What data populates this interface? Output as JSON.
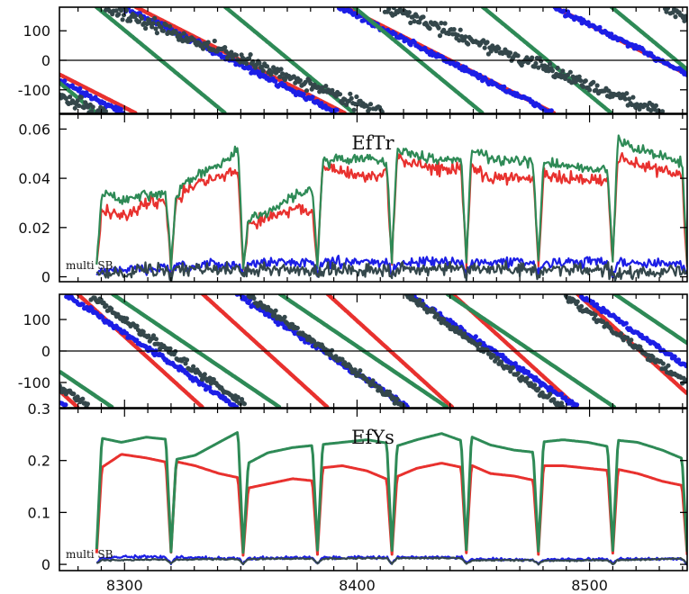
{
  "chart_data": [
    {
      "type": "scatter",
      "panel": "phase-top",
      "x_range": [
        8272,
        8542
      ],
      "ylim": [
        -180,
        180
      ],
      "y_ticks": [
        100,
        0,
        -100
      ],
      "y_tick_labels": [
        "100",
        "0",
        "-100"
      ],
      "series": [
        {
          "color": "#e8312e",
          "wraps": [
            {
              "start": 8305,
              "rate": -4.0
            }
          ]
        },
        {
          "color": "#1c1ee6",
          "wraps": [
            {
              "start": 8300,
              "rate": -3.9,
              "scatter": 14
            }
          ]
        },
        {
          "color": "#2e8a56",
          "wraps": [
            {
              "start": 8288,
              "rate": -6.5
            }
          ]
        },
        {
          "color": "#34474b",
          "wraps": [
            {
              "start": 8292,
              "rate": -3.0,
              "scatter": 30
            }
          ]
        }
      ]
    },
    {
      "type": "line",
      "panel": "amp-top",
      "title": "EfTr",
      "annotation": "multi SB",
      "x_range": [
        8272,
        8542
      ],
      "ylim": [
        -0.002,
        0.066
      ],
      "y_ticks": [
        0,
        0.02,
        0.04,
        0.06
      ],
      "y_tick_labels": [
        "0",
        "0.02",
        "0.04",
        "0.06"
      ],
      "cycle_breaks": [
        8288,
        8320,
        8351,
        8383,
        8415,
        8447,
        8478,
        8510,
        8542
      ],
      "series": [
        {
          "color": "#e8312e",
          "band": 0.004,
          "segments": [
            [
              0.028,
              0.024,
              0.03,
              0.032
            ],
            [
              0.03,
              0.038,
              0.04,
              0.044
            ],
            [
              0.021,
              0.024,
              0.028,
              0.026
            ],
            [
              0.046,
              0.042,
              0.041,
              0.042
            ],
            [
              0.048,
              0.046,
              0.044,
              0.043
            ],
            [
              0.046,
              0.04,
              0.041,
              0.041
            ],
            [
              0.042,
              0.039,
              0.04,
              0.039
            ],
            [
              0.05,
              0.046,
              0.043,
              0.04
            ]
          ]
        },
        {
          "color": "#2e8a56",
          "band": 0.003,
          "segments": [
            [
              0.035,
              0.031,
              0.033,
              0.034
            ],
            [
              0.032,
              0.041,
              0.045,
              0.054
            ],
            [
              0.022,
              0.026,
              0.033,
              0.036
            ],
            [
              0.046,
              0.048,
              0.048,
              0.047
            ],
            [
              0.052,
              0.049,
              0.048,
              0.048
            ],
            [
              0.053,
              0.048,
              0.047,
              0.046
            ],
            [
              0.047,
              0.045,
              0.044,
              0.043
            ],
            [
              0.057,
              0.052,
              0.049,
              0.046
            ]
          ]
        },
        {
          "color": "#1c1ee6",
          "band": 0.003,
          "segments": [
            [
              0.002,
              0.003,
              0.003,
              0.004
            ],
            [
              0.004,
              0.004,
              0.005,
              0.005
            ],
            [
              0.005,
              0.006,
              0.006,
              0.006
            ],
            [
              0.006,
              0.006,
              0.006,
              0.006
            ],
            [
              0.006,
              0.006,
              0.006,
              0.006
            ],
            [
              0.006,
              0.006,
              0.006,
              0.006
            ],
            [
              0.006,
              0.006,
              0.006,
              0.006
            ],
            [
              0.006,
              0.006,
              0.005,
              0.005
            ]
          ]
        },
        {
          "color": "#34474b",
          "band": 0.004,
          "segments": [
            [
              0.002,
              0.002,
              0.003,
              0.003
            ],
            [
              0.003,
              0.003,
              0.003,
              0.003
            ],
            [
              0.003,
              0.003,
              0.003,
              0.003
            ],
            [
              0.003,
              0.003,
              0.003,
              0.003
            ],
            [
              0.003,
              0.003,
              0.003,
              0.003
            ],
            [
              0.003,
              0.003,
              0.003,
              0.003
            ],
            [
              0.003,
              0.003,
              0.003,
              0.003
            ],
            [
              0.002,
              0.002,
              0.002,
              0.002
            ]
          ]
        }
      ]
    },
    {
      "type": "scatter",
      "panel": "phase-bottom",
      "x_range": [
        8272,
        8542
      ],
      "ylim": [
        -180,
        180
      ],
      "y_ticks": [
        100,
        0,
        -100
      ],
      "y_tick_labels": [
        "100",
        "0",
        "-100"
      ],
      "series": [
        {
          "color": "#e8312e",
          "wraps": [
            {
              "start": 8280,
              "rate": -6.7
            }
          ]
        },
        {
          "color": "#1c1ee6",
          "wraps": [
            {
              "start": 8275,
              "rate": -4.9,
              "scatter": 12
            }
          ]
        },
        {
          "color": "#2e8a56",
          "wraps": [
            {
              "start": 8295,
              "rate": -5.0
            }
          ]
        },
        {
          "color": "#34474b",
          "wraps": [
            {
              "start": 8285,
              "rate": -5.3,
              "scatter": 18
            }
          ]
        }
      ]
    },
    {
      "type": "line",
      "panel": "amp-bottom",
      "title": "EfYs",
      "annotation": "multi SB",
      "x_range": [
        8272,
        8542
      ],
      "ylim": [
        -0.012,
        0.3
      ],
      "y_ticks": [
        0,
        0.1,
        0.2,
        0.3
      ],
      "y_tick_labels": [
        "0",
        "0.1",
        "0.2",
        "0.3"
      ],
      "x_ticks": [
        8300,
        8400,
        8500
      ],
      "x_tick_labels": [
        "8300",
        "8400",
        "8500"
      ],
      "cycle_breaks": [
        8288,
        8320,
        8351,
        8383,
        8415,
        8447,
        8478,
        8510,
        8542
      ],
      "series": [
        {
          "color": "#e8312e",
          "band": 0,
          "segments": [
            [
              0.18,
              0.212,
              0.205,
              0.195
            ],
            [
              0.2,
              0.19,
              0.175,
              0.165
            ],
            [
              0.145,
              0.155,
              0.165,
              0.16
            ],
            [
              0.185,
              0.19,
              0.18,
              0.16
            ],
            [
              0.165,
              0.185,
              0.195,
              0.185
            ],
            [
              0.195,
              0.175,
              0.17,
              0.16
            ],
            [
              0.19,
              0.19,
              0.185,
              0.18
            ],
            [
              0.185,
              0.175,
              0.16,
              0.15
            ]
          ]
        },
        {
          "color": "#2e8a56",
          "band": 0,
          "segments": [
            [
              0.245,
              0.235,
              0.245,
              0.24
            ],
            [
              0.2,
              0.21,
              0.235,
              0.26
            ],
            [
              0.19,
              0.215,
              0.225,
              0.23
            ],
            [
              0.23,
              0.235,
              0.24,
              0.232
            ],
            [
              0.225,
              0.24,
              0.252,
              0.235
            ],
            [
              0.25,
              0.23,
              0.22,
              0.215
            ],
            [
              0.235,
              0.24,
              0.235,
              0.225
            ],
            [
              0.24,
              0.235,
              0.22,
              0.2
            ]
          ]
        },
        {
          "color": "#1c1ee6",
          "band": 0.004,
          "segments": [
            [
              0.012,
              0.014,
              0.015,
              0.014
            ],
            [
              0.014,
              0.013,
              0.012,
              0.012
            ],
            [
              0.012,
              0.012,
              0.013,
              0.013
            ],
            [
              0.013,
              0.013,
              0.014,
              0.013
            ],
            [
              0.013,
              0.014,
              0.014,
              0.014
            ],
            [
              0.01,
              0.01,
              0.009,
              0.009
            ],
            [
              0.009,
              0.009,
              0.01,
              0.01
            ],
            [
              0.01,
              0.01,
              0.011,
              0.01
            ]
          ]
        },
        {
          "color": "#34474b",
          "band": 0.002,
          "segments": [
            [
              0.008,
              0.008,
              0.009,
              0.009
            ],
            [
              0.009,
              0.01,
              0.01,
              0.01
            ],
            [
              0.01,
              0.011,
              0.011,
              0.011
            ],
            [
              0.011,
              0.011,
              0.012,
              0.012
            ],
            [
              0.012,
              0.012,
              0.012,
              0.012
            ],
            [
              0.008,
              0.008,
              0.008,
              0.008
            ],
            [
              0.007,
              0.007,
              0.008,
              0.008
            ],
            [
              0.008,
              0.009,
              0.01,
              0.012
            ]
          ]
        }
      ]
    }
  ]
}
